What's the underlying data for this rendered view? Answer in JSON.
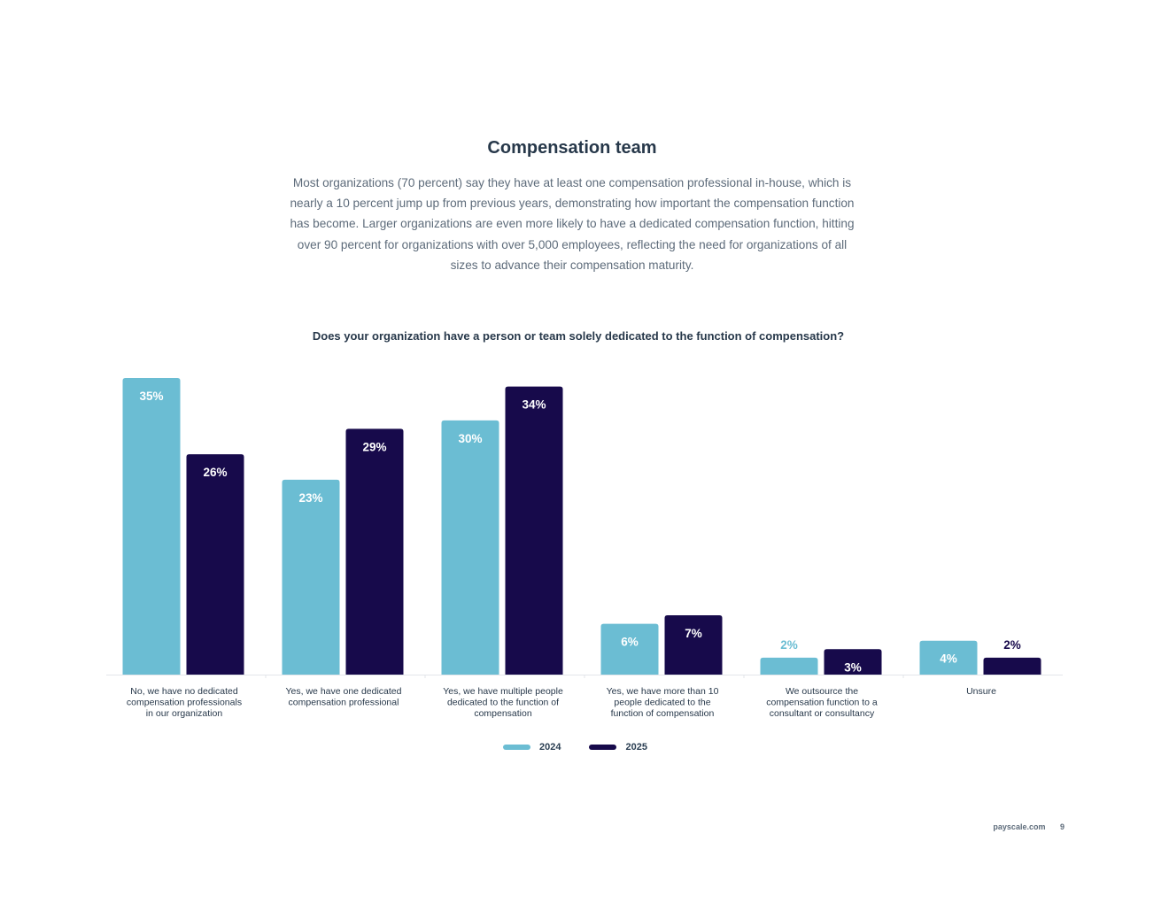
{
  "page": {
    "title": "Compensation team",
    "intro": "Most organizations (70 percent) say they have at least one compensation professional in-house, which is nearly a 10 percent jump up from previous years, demonstrating how important the compensation function has become. Larger organizations are even more likely to have a dedicated compensation function, hitting over 90 percent for organizations with over 5,000 employees, reflecting the need for organizations of all sizes to advance their compensation maturity."
  },
  "footer": {
    "site": "payscale.com",
    "page_number": "9"
  },
  "chart_data": {
    "type": "bar",
    "title": "Does your organization have a person or team solely dedicated to the function of compensation?",
    "categories": [
      "No, we have no dedicated compensation professionals in our organization",
      "Yes, we have one dedicated compensation professional",
      "Yes, we have multiple people dedicated to the function of compensation",
      "Yes, we have more than 10 people dedicated to the function of compensation",
      "We outsource the compensation function to a consultant or consultancy",
      "Unsure"
    ],
    "series": [
      {
        "name": "2024",
        "values": [
          35,
          23,
          30,
          6,
          2,
          4
        ],
        "labels": [
          "35%",
          "23%",
          "30%",
          "6%",
          "2%",
          "4%"
        ],
        "color": "#6bbdd3"
      },
      {
        "name": "2025",
        "values": [
          26,
          29,
          34,
          7,
          3,
          2
        ],
        "labels": [
          "26%",
          "29%",
          "34%",
          "7%",
          "3%",
          "2%"
        ],
        "color": "#170a4b"
      }
    ],
    "ylim": [
      0,
      35
    ],
    "grid": false,
    "legend_position": "bottom-center",
    "xlabel": "",
    "ylabel": ""
  }
}
